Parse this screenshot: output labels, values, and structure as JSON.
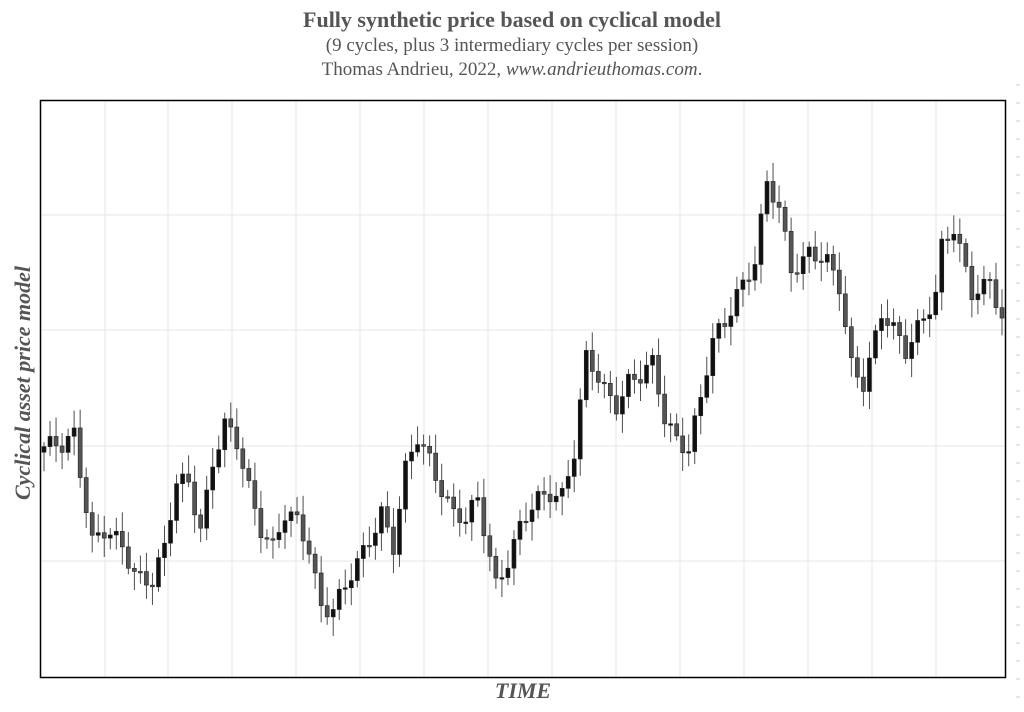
{
  "chart_data": {
    "type": "candlestick",
    "title": "Fully synthetic price based on cyclical model",
    "subtitle": "(9 cycles, plus 3 intermediary cycles per session)",
    "credit_prefix": "Thomas Andrieu, 2022, ",
    "credit_url": "www.andrieuthomas.com",
    "credit_suffix": ".",
    "xlabel": "TIME",
    "ylabel": "Cyclical asset price model",
    "grid": true,
    "ylim": [
      0,
      100
    ],
    "n_sessions": 160,
    "anchors": [
      [
        0,
        39
      ],
      [
        3,
        40
      ],
      [
        5,
        43
      ],
      [
        8,
        23
      ],
      [
        10,
        24
      ],
      [
        13,
        22
      ],
      [
        15,
        18
      ],
      [
        18,
        16
      ],
      [
        20,
        21
      ],
      [
        22,
        33
      ],
      [
        24,
        34
      ],
      [
        26,
        26
      ],
      [
        28,
        37
      ],
      [
        30,
        43
      ],
      [
        32,
        40
      ],
      [
        36,
        26
      ],
      [
        38,
        22
      ],
      [
        40,
        27
      ],
      [
        42,
        26
      ],
      [
        44,
        22
      ],
      [
        46,
        12
      ],
      [
        48,
        11
      ],
      [
        50,
        14
      ],
      [
        53,
        21
      ],
      [
        56,
        29
      ],
      [
        58,
        22
      ],
      [
        60,
        35
      ],
      [
        62,
        41
      ],
      [
        64,
        38
      ],
      [
        68,
        28
      ],
      [
        70,
        26
      ],
      [
        72,
        30
      ],
      [
        75,
        16
      ],
      [
        77,
        20
      ],
      [
        79,
        25
      ],
      [
        82,
        30
      ],
      [
        84,
        32
      ],
      [
        86,
        32
      ],
      [
        88,
        39
      ],
      [
        90,
        55
      ],
      [
        93,
        50
      ],
      [
        95,
        48
      ],
      [
        97,
        52
      ],
      [
        99,
        52
      ],
      [
        101,
        54
      ],
      [
        103,
        45
      ],
      [
        105,
        42
      ],
      [
        107,
        40
      ],
      [
        109,
        48
      ],
      [
        111,
        58
      ],
      [
        113,
        62
      ],
      [
        115,
        68
      ],
      [
        118,
        73
      ],
      [
        120,
        86
      ],
      [
        122,
        82
      ],
      [
        124,
        72
      ],
      [
        127,
        75
      ],
      [
        130,
        72
      ],
      [
        132,
        68
      ],
      [
        134,
        55
      ],
      [
        136,
        52
      ],
      [
        139,
        63
      ],
      [
        141,
        60
      ],
      [
        143,
        57
      ],
      [
        145,
        62
      ],
      [
        148,
        67
      ],
      [
        149,
        75
      ],
      [
        151,
        78
      ],
      [
        154,
        68
      ],
      [
        157,
        70
      ],
      [
        159,
        62
      ]
    ]
  }
}
